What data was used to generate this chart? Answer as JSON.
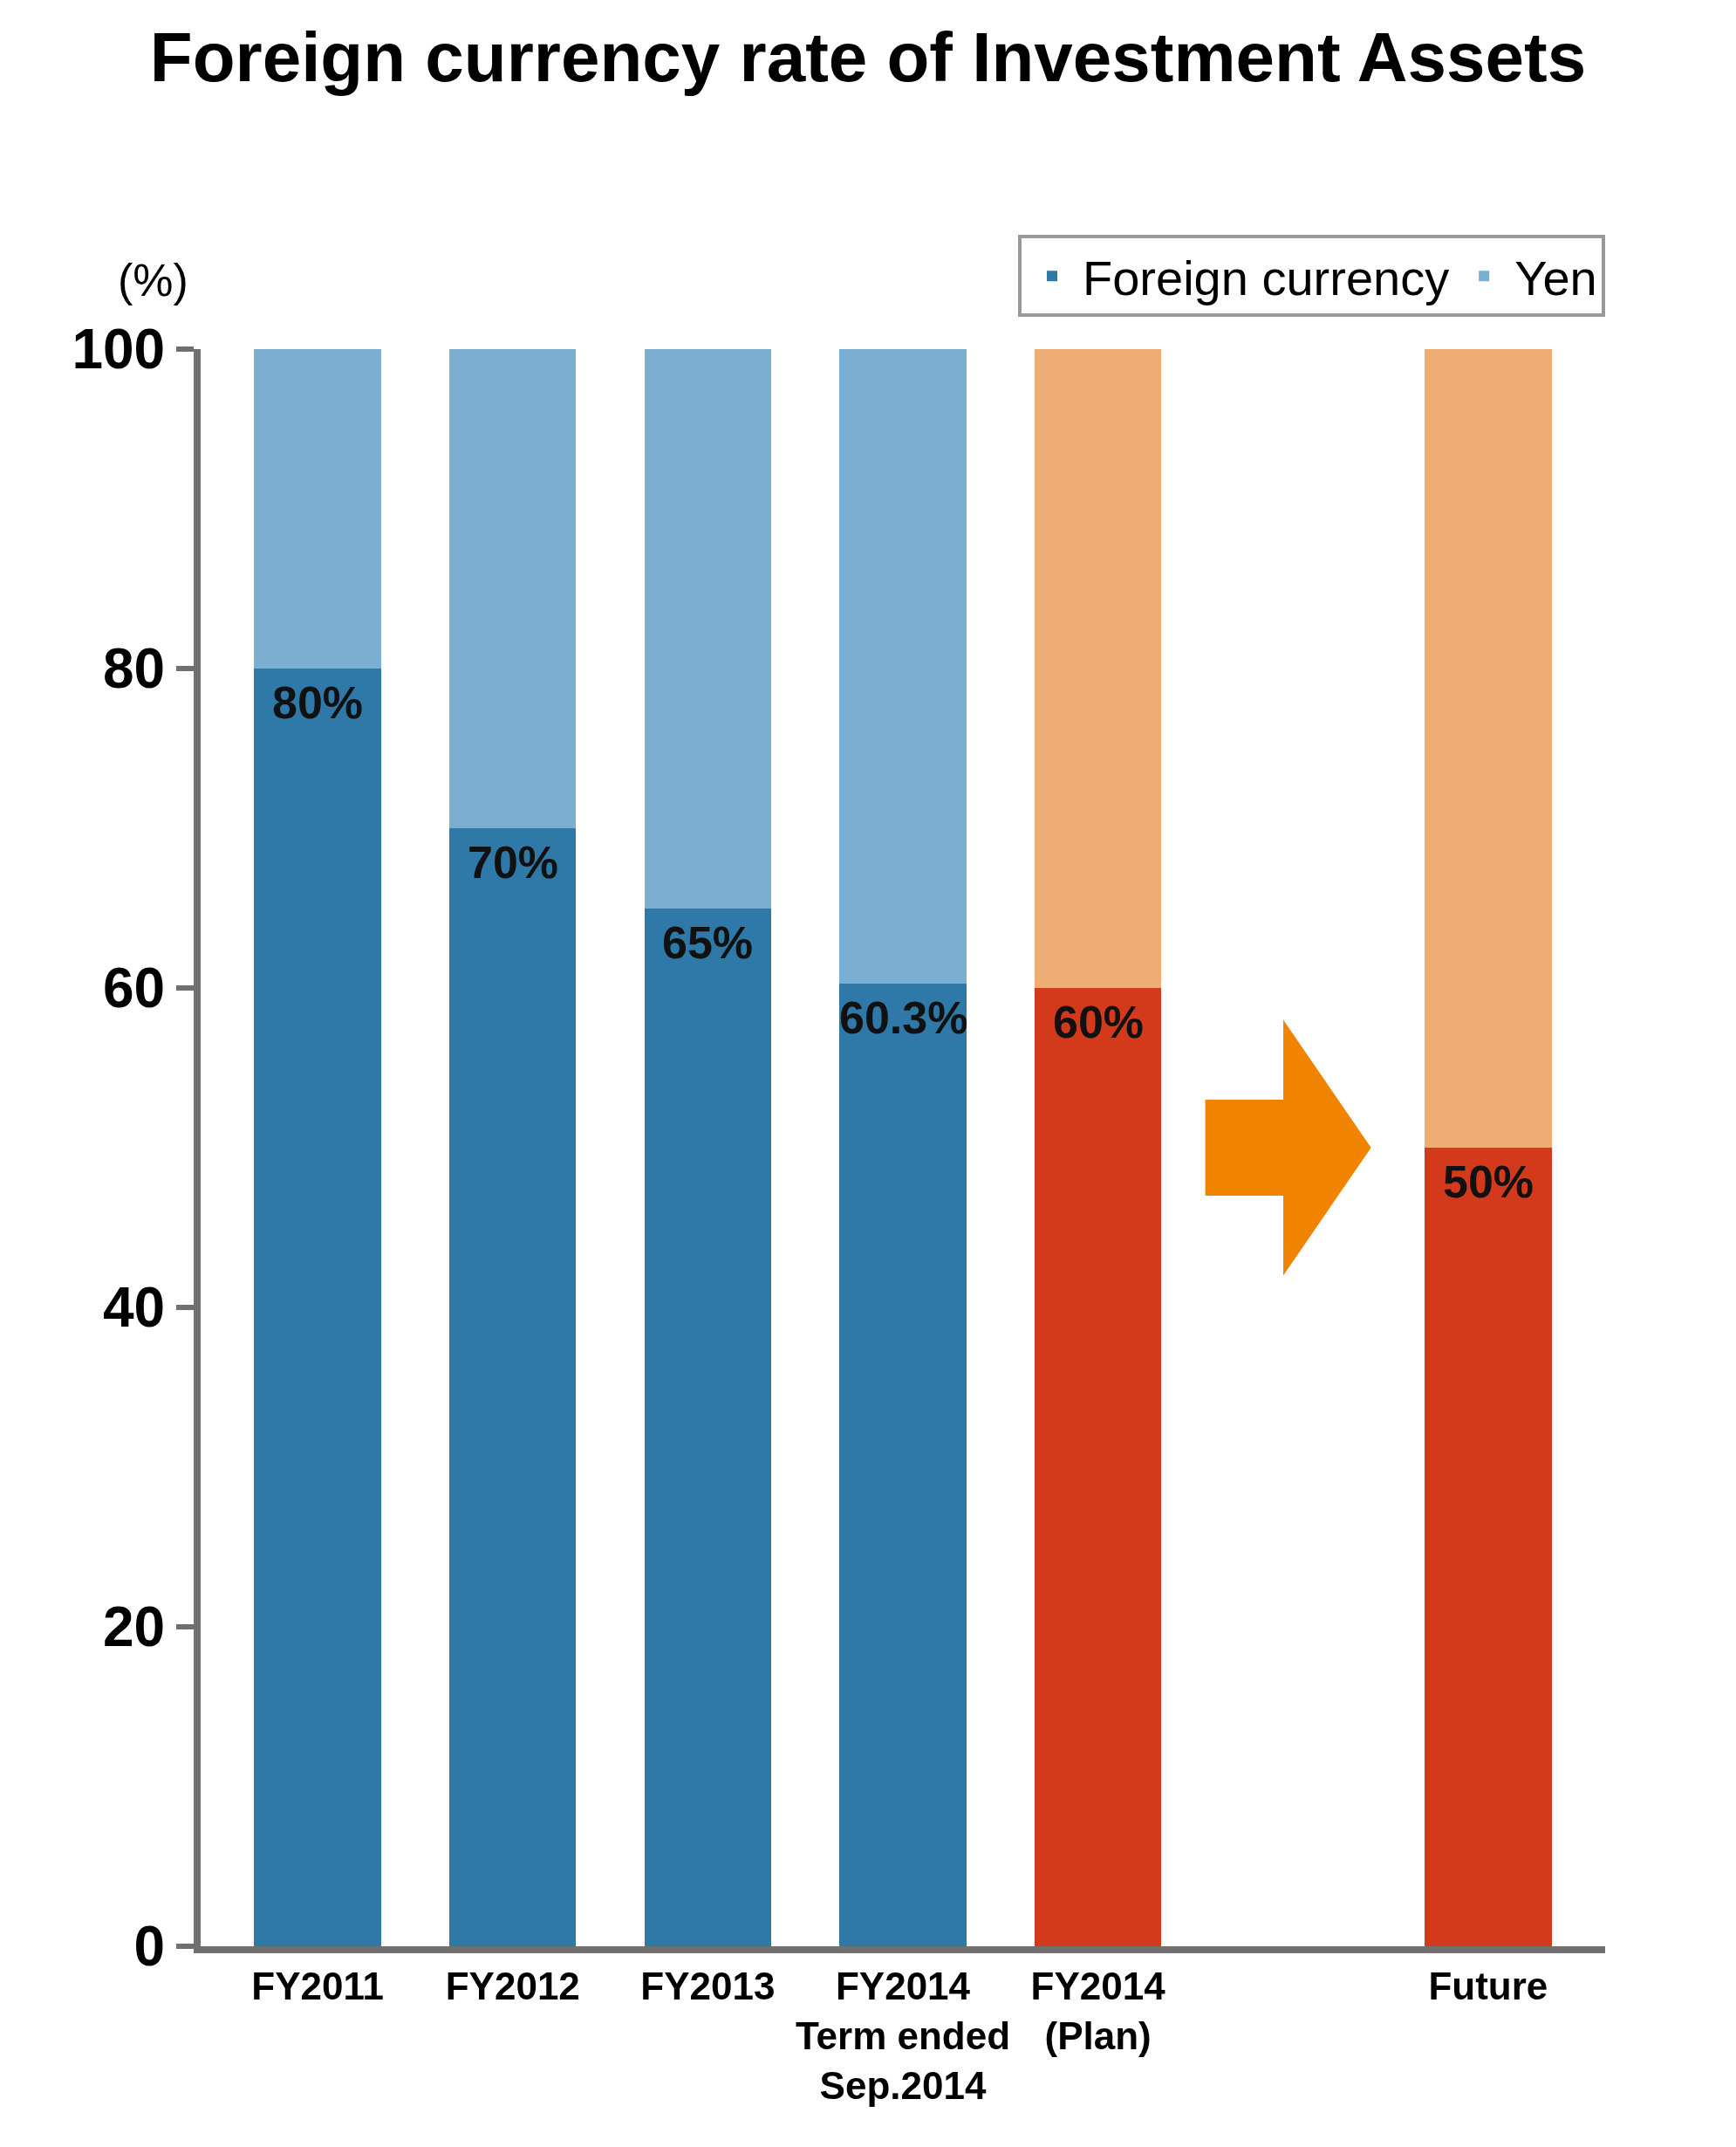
{
  "chart_data": {
    "type": "bar",
    "title": "Foreign currency rate of Investment Assets",
    "ylabel": "(%)",
    "categories": [
      "FY2011",
      "FY2012",
      "FY2013",
      "FY2014\nTerm ended\nSep.2014",
      "FY2014\n(Plan)",
      null,
      "Future"
    ],
    "stacked": true,
    "series": [
      {
        "name": "Foreign currency",
        "color": "#2e79a8",
        "colors": [
          "#2e79a8",
          "#2e79a8",
          "#2e79a8",
          "#2e79a8",
          "#d33a1c",
          "#d33a1c",
          "#d33a1c"
        ],
        "values": [
          80,
          70,
          65,
          60.3,
          60,
          null,
          50
        ],
        "value_labels": [
          "80%",
          "70%",
          "65%",
          "60.3%",
          "60%",
          null,
          "50%"
        ]
      },
      {
        "name": "Yen",
        "color": "#7bafd2",
        "colors": [
          "#7bafd2",
          "#7bafd2",
          "#7bafd2",
          "#7bafd2",
          "#edad75",
          "#edad75",
          "#edad75"
        ],
        "values": [
          20,
          30,
          35,
          39.7,
          40,
          null,
          50
        ]
      }
    ],
    "ylim": [
      0,
      100
    ],
    "yticks": [
      0,
      20,
      40,
      60,
      80,
      100
    ],
    "legend": "top right"
  }
}
